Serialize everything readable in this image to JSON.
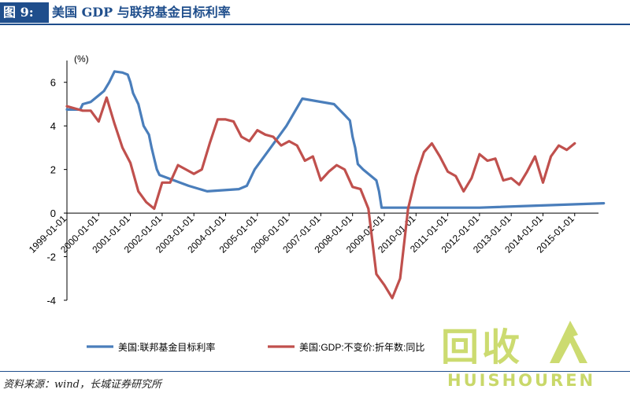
{
  "header": {
    "figure_label": "图 9:",
    "title": "美国 GDP 与联邦基金目标利率"
  },
  "source": "资料来源：wind，长城证券研究所",
  "watermark": {
    "glyphs": "回收",
    "text": "HUISHOUREN"
  },
  "colors": {
    "accent": "#1f4e8c",
    "fed_rate": "#4a7ebb",
    "gdp": "#c0504d",
    "watermark": "#c9d86a"
  },
  "chart_data": {
    "type": "line",
    "title": "",
    "xlabel": "",
    "ylabel": "(%)",
    "ylim": [
      -4,
      7
    ],
    "yticks": [
      -4,
      -2,
      0,
      2,
      4,
      6
    ],
    "xlim": [
      "1999-01-01",
      "2015-10-01"
    ],
    "x_tick_labels": [
      "1999-01-01",
      "2000-01-01",
      "2001-01-01",
      "2002-01-01",
      "2003-01-01",
      "2004-01-01",
      "2005-01-01",
      "2006-01-01",
      "2007-01-01",
      "2008-01-01",
      "2009-01-01",
      "2010-01-01",
      "2011-01-01",
      "2012-01-01",
      "2013-01-01",
      "2014-01-01",
      "2015-01-01"
    ],
    "grid": false,
    "legend_position": "bottom",
    "series": [
      {
        "name": "美国:联邦基金目标利率",
        "color": "#4a7ebb",
        "points": [
          [
            "1999-01-01",
            4.75
          ],
          [
            "1999-06-01",
            4.75
          ],
          [
            "1999-07-01",
            5.0
          ],
          [
            "1999-10-01",
            5.1
          ],
          [
            "2000-01-01",
            5.4
          ],
          [
            "2000-03-01",
            5.6
          ],
          [
            "2000-05-01",
            6.0
          ],
          [
            "2000-07-01",
            6.5
          ],
          [
            "2000-10-01",
            6.45
          ],
          [
            "2000-12-01",
            6.35
          ],
          [
            "2001-01-01",
            6.0
          ],
          [
            "2001-02-01",
            5.5
          ],
          [
            "2001-04-01",
            5.0
          ],
          [
            "2001-06-01",
            4.0
          ],
          [
            "2001-08-01",
            3.6
          ],
          [
            "2001-09-01",
            3.0
          ],
          [
            "2001-10-01",
            2.5
          ],
          [
            "2001-11-01",
            2.0
          ],
          [
            "2001-12-01",
            1.75
          ],
          [
            "2002-11-01",
            1.25
          ],
          [
            "2003-06-01",
            1.0
          ],
          [
            "2004-06-01",
            1.1
          ],
          [
            "2004-09-01",
            1.25
          ],
          [
            "2004-12-01",
            2.0
          ],
          [
            "2005-06-01",
            3.0
          ],
          [
            "2005-12-01",
            4.0
          ],
          [
            "2006-06-01",
            5.25
          ],
          [
            "2007-06-01",
            5.0
          ],
          [
            "2007-08-01",
            4.75
          ],
          [
            "2007-10-01",
            4.5
          ],
          [
            "2007-12-01",
            4.25
          ],
          [
            "2008-01-01",
            3.5
          ],
          [
            "2008-02-01",
            3.0
          ],
          [
            "2008-03-01",
            2.25
          ],
          [
            "2008-05-01",
            2.0
          ],
          [
            "2008-10-01",
            1.5
          ],
          [
            "2008-11-01",
            1.0
          ],
          [
            "2008-12-01",
            0.25
          ],
          [
            "2010-01-01",
            0.25
          ],
          [
            "2012-01-01",
            0.25
          ],
          [
            "2015-12-01",
            0.45
          ]
        ]
      },
      {
        "name": "美国:GDP:不变价:折年数:同比",
        "color": "#c0504d",
        "points": [
          [
            "1999-01-01",
            4.9
          ],
          [
            "1999-04-01",
            4.8
          ],
          [
            "1999-07-01",
            4.7
          ],
          [
            "1999-10-01",
            4.7
          ],
          [
            "2000-01-01",
            4.2
          ],
          [
            "2000-04-01",
            5.3
          ],
          [
            "2000-07-01",
            4.1
          ],
          [
            "2000-10-01",
            3.0
          ],
          [
            "2001-01-01",
            2.3
          ],
          [
            "2001-04-01",
            1.0
          ],
          [
            "2001-07-01",
            0.5
          ],
          [
            "2001-10-01",
            0.2
          ],
          [
            "2002-01-01",
            1.4
          ],
          [
            "2002-04-01",
            1.4
          ],
          [
            "2002-07-01",
            2.2
          ],
          [
            "2002-10-01",
            2.0
          ],
          [
            "2003-01-01",
            1.8
          ],
          [
            "2003-04-01",
            2.0
          ],
          [
            "2003-07-01",
            3.2
          ],
          [
            "2003-10-01",
            4.3
          ],
          [
            "2004-01-01",
            4.3
          ],
          [
            "2004-04-01",
            4.2
          ],
          [
            "2004-07-01",
            3.5
          ],
          [
            "2004-10-01",
            3.3
          ],
          [
            "2005-01-01",
            3.8
          ],
          [
            "2005-04-01",
            3.6
          ],
          [
            "2005-07-01",
            3.5
          ],
          [
            "2005-10-01",
            3.1
          ],
          [
            "2006-01-01",
            3.3
          ],
          [
            "2006-04-01",
            3.1
          ],
          [
            "2006-07-01",
            2.4
          ],
          [
            "2006-10-01",
            2.6
          ],
          [
            "2007-01-01",
            1.5
          ],
          [
            "2007-04-01",
            1.9
          ],
          [
            "2007-07-01",
            2.2
          ],
          [
            "2007-10-01",
            2.0
          ],
          [
            "2008-01-01",
            1.2
          ],
          [
            "2008-04-01",
            1.1
          ],
          [
            "2008-07-01",
            0.2
          ],
          [
            "2008-10-01",
            -2.8
          ],
          [
            "2009-01-01",
            -3.3
          ],
          [
            "2009-04-01",
            -3.9
          ],
          [
            "2009-07-01",
            -3.0
          ],
          [
            "2009-10-01",
            0.2
          ],
          [
            "2010-01-01",
            1.7
          ],
          [
            "2010-04-01",
            2.8
          ],
          [
            "2010-07-01",
            3.2
          ],
          [
            "2010-10-01",
            2.6
          ],
          [
            "2011-01-01",
            1.9
          ],
          [
            "2011-04-01",
            1.7
          ],
          [
            "2011-07-01",
            1.0
          ],
          [
            "2011-10-01",
            1.6
          ],
          [
            "2012-01-01",
            2.7
          ],
          [
            "2012-04-01",
            2.4
          ],
          [
            "2012-07-01",
            2.5
          ],
          [
            "2012-10-01",
            1.5
          ],
          [
            "2013-01-01",
            1.6
          ],
          [
            "2013-04-01",
            1.3
          ],
          [
            "2013-07-01",
            1.9
          ],
          [
            "2013-10-01",
            2.6
          ],
          [
            "2014-01-01",
            1.4
          ],
          [
            "2014-04-01",
            2.6
          ],
          [
            "2014-07-01",
            3.1
          ],
          [
            "2014-10-01",
            2.9
          ],
          [
            "2015-01-01",
            3.2
          ]
        ]
      }
    ]
  }
}
